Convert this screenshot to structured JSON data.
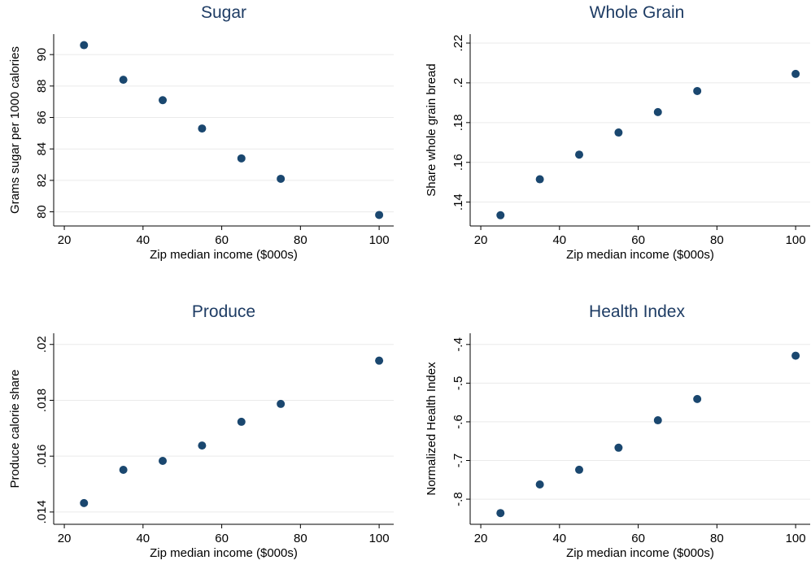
{
  "chart_data": [
    {
      "type": "scatter",
      "title": "Sugar",
      "x_label": "Zip median income ($000s)",
      "y_label": "Grams sugar per 1000 calories",
      "x": [
        25,
        35,
        45,
        55,
        65,
        75,
        100
      ],
      "values": [
        90.6,
        88.4,
        87.1,
        85.3,
        83.4,
        82.1,
        79.8
      ],
      "color": "#1a476f",
      "xlim": [
        17.3,
        103.7
      ],
      "ylim": [
        79.1,
        91.3
      ],
      "xticks": [
        20,
        40,
        60,
        80,
        100
      ],
      "yticks": [
        80,
        82,
        84,
        86,
        88,
        90
      ],
      "grid": true
    },
    {
      "type": "scatter",
      "title": "Whole Grain",
      "x_label": "Zip median income ($000s)",
      "y_label": "Share whole grain bread",
      "x": [
        25,
        35,
        45,
        55,
        65,
        75,
        100
      ],
      "values": [
        0.1334,
        0.1515,
        0.1639,
        0.175,
        0.1853,
        0.1959,
        0.2045
      ],
      "color": "#1a476f",
      "xlim": [
        17.3,
        103.7
      ],
      "ylim": [
        0.128,
        0.2245
      ],
      "xticks": [
        20,
        40,
        60,
        80,
        100
      ],
      "yticks": [
        {
          "value": 0.14,
          "label": ".14"
        },
        {
          "value": 0.16,
          "label": ".16"
        },
        {
          "value": 0.18,
          "label": ".18"
        },
        {
          "value": 0.2,
          "label": ".2"
        },
        {
          "value": 0.22,
          "label": ".22"
        }
      ],
      "grid": true
    },
    {
      "type": "scatter",
      "title": "Produce",
      "x_label": "Zip median income ($000s)",
      "y_label": "Produce calorie share",
      "x": [
        25,
        35,
        45,
        55,
        65,
        75,
        100
      ],
      "values": [
        0.01432,
        0.01551,
        0.01583,
        0.01638,
        0.01723,
        0.01787,
        0.01942
      ],
      "color": "#1a476f",
      "xlim": [
        17.3,
        103.7
      ],
      "ylim": [
        0.01356,
        0.0204
      ],
      "xticks": [
        20,
        40,
        60,
        80,
        100
      ],
      "yticks": [
        {
          "value": 0.014,
          "label": ".014"
        },
        {
          "value": 0.016,
          "label": ".016"
        },
        {
          "value": 0.018,
          "label": ".018"
        },
        {
          "value": 0.02,
          "label": ".02"
        }
      ],
      "grid": true
    },
    {
      "type": "scatter",
      "title": "Health Index",
      "x_label": "Zip median income ($000s)",
      "y_label": "Normalized Health Index",
      "x": [
        25,
        35,
        45,
        55,
        65,
        75,
        100
      ],
      "values": [
        -0.836,
        -0.762,
        -0.724,
        -0.667,
        -0.596,
        -0.541,
        -0.429
      ],
      "color": "#1a476f",
      "xlim": [
        17.3,
        103.7
      ],
      "ylim": [
        -0.865,
        -0.371
      ],
      "xticks": [
        20,
        40,
        60,
        80,
        100
      ],
      "yticks": [
        {
          "value": -0.8,
          "label": "-.8"
        },
        {
          "value": -0.7,
          "label": "-.7"
        },
        {
          "value": -0.6,
          "label": "-.6"
        },
        {
          "value": -0.5,
          "label": "-.5"
        },
        {
          "value": -0.4,
          "label": "-.4"
        }
      ],
      "grid": true
    }
  ]
}
